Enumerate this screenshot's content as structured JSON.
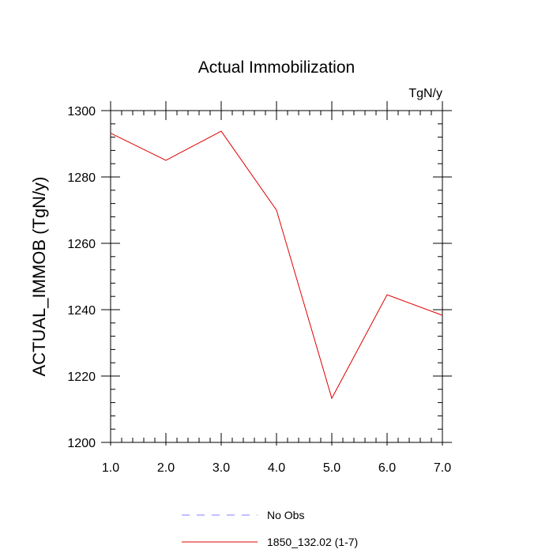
{
  "chart_data": {
    "type": "line",
    "title": "Actual Immobilization",
    "units_label": "TgN/y",
    "xlabel": "",
    "ylabel": "ACTUAL_IMMOB  (TgN/y)",
    "xlim": [
      1,
      7
    ],
    "ylim": [
      1200,
      1300
    ],
    "x_ticks": [
      1,
      2,
      3,
      4,
      5,
      6,
      7
    ],
    "x_tick_labels": [
      "1.0",
      "2.0",
      "3.0",
      "4.0",
      "5.0",
      "6.0",
      "7.0"
    ],
    "y_ticks": [
      1200,
      1220,
      1240,
      1260,
      1280,
      1300
    ],
    "y_tick_labels": [
      "1200",
      "1220",
      "1240",
      "1260",
      "1280",
      "1300"
    ],
    "grid": false,
    "series": [
      {
        "name": "1850_132.02 (1-7)",
        "color": "#e00000",
        "x": [
          1,
          2,
          3,
          4,
          5,
          6,
          7
        ],
        "values": [
          1293.2,
          1285.0,
          1293.8,
          1270.0,
          1213.3,
          1244.5,
          1238.3
        ]
      }
    ],
    "legend": [
      {
        "label": "No Obs",
        "color": "#8080ff",
        "style": "dashed"
      },
      {
        "label": "1850_132.02 (1-7)",
        "color": "#e00000",
        "style": "solid"
      }
    ],
    "legend_position": "bottom-center"
  }
}
